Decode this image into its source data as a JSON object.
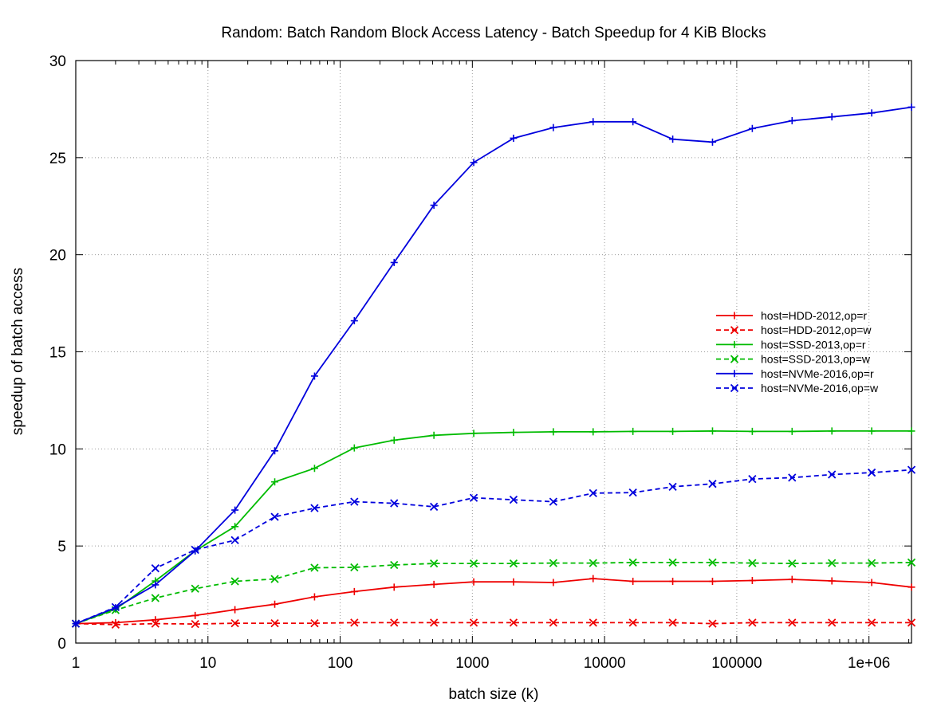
{
  "chart_data": {
    "type": "line",
    "title": "Random: Batch Random Block Access Latency - Batch Speedup for 4 KiB Blocks",
    "xlabel": "batch size (k)",
    "ylabel": "speedup of batch access",
    "xscale": "log",
    "xlim": [
      1,
      2097152
    ],
    "ylim": [
      0,
      30
    ],
    "x_ticks": [
      1,
      10,
      100,
      1000,
      10000,
      100000,
      1000000
    ],
    "x_tick_labels": [
      "1",
      "10",
      "100",
      "1000",
      "10000",
      "100000",
      "1e+06"
    ],
    "y_ticks": [
      0,
      5,
      10,
      15,
      20,
      25,
      30
    ],
    "y_tick_labels": [
      "0",
      "5",
      "10",
      "15",
      "20",
      "25",
      "30"
    ],
    "grid": true,
    "legend_position": "right",
    "x": [
      1,
      2,
      4,
      8,
      16,
      32,
      64,
      128,
      256,
      512,
      1024,
      2048,
      4096,
      8192,
      16384,
      32768,
      65536,
      131072,
      262144,
      524288,
      1048576,
      2097152
    ],
    "series": [
      {
        "name": "host=HDD-2012,op=r",
        "color": "#ee0000",
        "dash": "solid",
        "marker": "plus",
        "values": [
          1.0,
          1.05,
          1.2,
          1.42,
          1.72,
          2.0,
          2.38,
          2.65,
          2.88,
          3.02,
          3.15,
          3.15,
          3.12,
          3.32,
          3.18,
          3.18,
          3.18,
          3.22,
          3.28,
          3.2,
          3.12,
          2.88
        ]
      },
      {
        "name": "host=HDD-2012,op=w",
        "color": "#ee0000",
        "dash": "dashed",
        "marker": "x",
        "values": [
          1.0,
          0.95,
          1.0,
          0.98,
          1.02,
          1.02,
          1.02,
          1.05,
          1.05,
          1.05,
          1.05,
          1.05,
          1.05,
          1.05,
          1.05,
          1.05,
          1.0,
          1.05,
          1.05,
          1.05,
          1.05,
          1.05
        ]
      },
      {
        "name": "host=SSD-2013,op=r",
        "color": "#00bb00",
        "dash": "solid",
        "marker": "plus",
        "values": [
          1.0,
          1.75,
          3.2,
          4.75,
          6.0,
          8.3,
          9.0,
          10.05,
          10.45,
          10.7,
          10.8,
          10.85,
          10.88,
          10.88,
          10.9,
          10.9,
          10.92,
          10.9,
          10.9,
          10.92,
          10.92,
          10.92
        ]
      },
      {
        "name": "host=SSD-2013,op=w",
        "color": "#00bb00",
        "dash": "dashed",
        "marker": "x",
        "values": [
          1.0,
          1.7,
          2.32,
          2.8,
          3.18,
          3.3,
          3.88,
          3.9,
          4.02,
          4.1,
          4.1,
          4.1,
          4.12,
          4.12,
          4.15,
          4.15,
          4.15,
          4.12,
          4.1,
          4.12,
          4.12,
          4.15
        ]
      },
      {
        "name": "host=NVMe-2016,op=r",
        "color": "#0000dd",
        "dash": "solid",
        "marker": "plus",
        "values": [
          1.0,
          1.82,
          3.0,
          4.75,
          6.85,
          9.9,
          13.75,
          16.6,
          19.6,
          22.55,
          24.75,
          26.0,
          26.55,
          26.85,
          26.85,
          25.95,
          25.8,
          26.5,
          26.9,
          27.1,
          27.3,
          27.6
        ]
      },
      {
        "name": "host=NVMe-2016,op=w",
        "color": "#0000dd",
        "dash": "dashed",
        "marker": "x",
        "values": [
          1.0,
          1.85,
          3.85,
          4.8,
          5.3,
          6.5,
          6.95,
          7.28,
          7.2,
          7.02,
          7.48,
          7.38,
          7.28,
          7.72,
          7.75,
          8.05,
          8.2,
          8.45,
          8.52,
          8.68,
          8.78,
          8.92
        ]
      }
    ]
  }
}
